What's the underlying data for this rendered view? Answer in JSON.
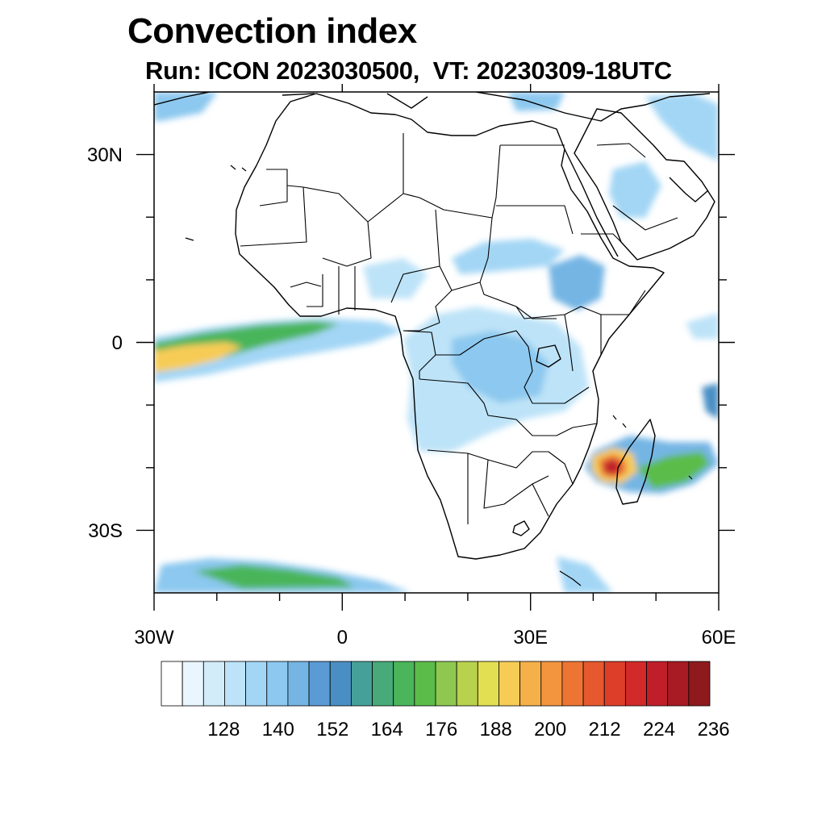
{
  "title": "Convection index",
  "subtitle": "Run: ICON 2023030500,  VT: 20230309-18UTC",
  "map": {
    "lon_range": [
      -30,
      60
    ],
    "lat_range": [
      -40,
      40
    ],
    "lon_ticks": [
      {
        "value": -30,
        "label": "30W"
      },
      {
        "value": 0,
        "label": "0"
      },
      {
        "value": 30,
        "label": "30E"
      },
      {
        "value": 60,
        "label": "60E"
      }
    ],
    "lat_ticks": [
      {
        "value": 30,
        "label": "30N"
      },
      {
        "value": 0,
        "label": "0"
      },
      {
        "value": -30,
        "label": "30S"
      }
    ]
  },
  "colorbar": {
    "colors": [
      "#ffffff",
      "#eaf6fd",
      "#d3ecfa",
      "#bde3f8",
      "#a3d6f5",
      "#8cc8ef",
      "#74b5e4",
      "#5b9bd5",
      "#4a8fc4",
      "#46a09a",
      "#47aa78",
      "#4ab55a",
      "#5cbc4a",
      "#8ec850",
      "#b8d24e",
      "#e3df53",
      "#f6cc57",
      "#f5b04a",
      "#f3953f",
      "#ee7434",
      "#e6582d",
      "#dd3e2a",
      "#d22a2a",
      "#c01f2a",
      "#a81a24",
      "#8e1a1e"
    ],
    "labels": [
      "128",
      "140",
      "152",
      "164",
      "176",
      "188",
      "200",
      "212",
      "224",
      "236"
    ]
  }
}
